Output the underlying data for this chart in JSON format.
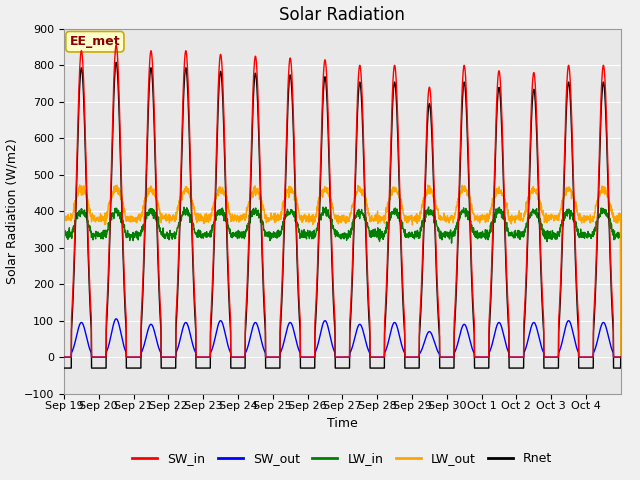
{
  "title": "Solar Radiation",
  "ylabel": "Solar Radiation (W/m2)",
  "xlabel": "Time",
  "ylim": [
    -100,
    900
  ],
  "yticks": [
    -100,
    0,
    100,
    200,
    300,
    400,
    500,
    600,
    700,
    800,
    900
  ],
  "plot_bg_color": "#e8e8e8",
  "fig_bg_color": "#f0f0f0",
  "annotation_text": "EE_met",
  "legend_entries": [
    "SW_in",
    "SW_out",
    "LW_in",
    "LW_out",
    "Rnet"
  ],
  "legend_colors": [
    "red",
    "blue",
    "green",
    "orange",
    "black"
  ],
  "num_days": 16,
  "x_tick_labels": [
    "Sep 19",
    "Sep 20",
    "Sep 21",
    "Sep 22",
    "Sep 23",
    "Sep 24",
    "Sep 25",
    "Sep 26",
    "Sep 27",
    "Sep 28",
    "Sep 29",
    "Sep 30",
    "Oct 1",
    "Oct 2",
    "Oct 3",
    "Oct 4"
  ],
  "sw_in_peaks": [
    840,
    855,
    840,
    840,
    830,
    825,
    820,
    815,
    800,
    800,
    740,
    800,
    785,
    780,
    800,
    800
  ],
  "sw_out_peaks": [
    95,
    105,
    90,
    95,
    100,
    95,
    95,
    100,
    90,
    95,
    70,
    90,
    95,
    95,
    100,
    95
  ],
  "lw_in_baseline": 335,
  "lw_in_daytime_bump": 65,
  "lw_out_baseline": 380,
  "lw_out_daytime_bump": 80,
  "rnet_negative": -75,
  "line_width": 1.0,
  "title_fontsize": 12,
  "axis_fontsize": 9,
  "tick_fontsize": 8
}
